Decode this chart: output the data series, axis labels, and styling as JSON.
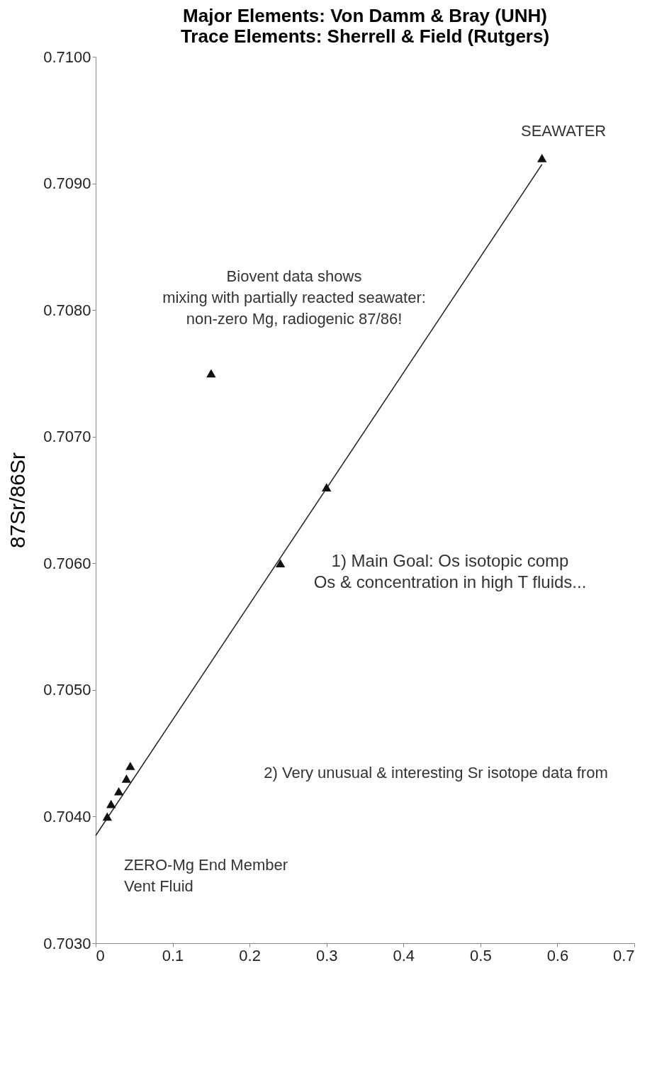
{
  "chart_data": {
    "type": "scatter",
    "title": "Major Elements: Von Damm & Bray (UNH)",
    "subtitle": "Trace Elements: Sherrell & Field (Rutgers)",
    "ylabel": "87Sr/86Sr",
    "xlim": [
      0,
      0.7
    ],
    "xticks": [
      0,
      0.1,
      0.2,
      0.3,
      0.4,
      0.5,
      0.6,
      0.7
    ],
    "ylim": [
      0.703,
      0.71
    ],
    "yticks": [
      {
        "value": 0.703,
        "label": "0.7030"
      },
      {
        "value": 0.704,
        "label": "0.7040"
      },
      {
        "value": 0.705,
        "label": "0.7050"
      },
      {
        "value": 0.706,
        "label": "0.7060"
      },
      {
        "value": 0.707,
        "label": "0.7070"
      },
      {
        "value": 0.708,
        "label": "0.7080"
      },
      {
        "value": 0.709,
        "label": "0.7090"
      },
      {
        "value": 0.71,
        "label": "0.7100"
      }
    ],
    "grid": false,
    "legend": false,
    "series": [
      {
        "type": "line",
        "color": "#222222",
        "x": [
          0,
          0.58
        ],
        "values": [
          0.70385,
          0.70915
        ]
      },
      {
        "type": "scatter",
        "marker": "triangle",
        "color": "#111111",
        "x": [
          0.58,
          0.3,
          0.24,
          0.15,
          0.045,
          0.04,
          0.03,
          0.02,
          0.015
        ],
        "values": [
          0.7092,
          0.7066,
          0.706,
          0.7075,
          0.7044,
          0.7043,
          0.7042,
          0.7041,
          0.704
        ]
      }
    ],
    "annotations": [
      "SEAWATER",
      "Biovent data shows\nmixing with partially reacted seawater:\nnon-zero Mg, radiogenic 87/86!",
      "ZERO-Mg End Member\nVent Fluid",
      "1) Main Goal: Os isotopic comp\nOs & concentration in high T fluids...",
      "2) Very unusual & interesting Sr isotope data from"
    ]
  }
}
